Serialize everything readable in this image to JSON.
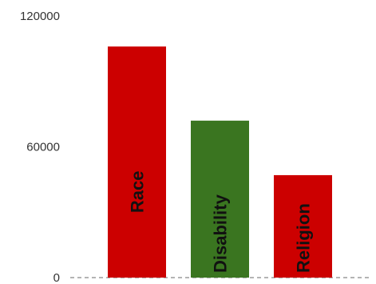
{
  "chart_data": {
    "type": "bar",
    "categories": [
      "Race",
      "Disability",
      "Religion"
    ],
    "values": [
      106000,
      72000,
      47000
    ],
    "colors": [
      "#cc0000",
      "#3a7520",
      "#cc0000"
    ],
    "ylim": [
      0,
      120000
    ],
    "yticks": [
      "0",
      "60000",
      "120000"
    ],
    "ytick_values": [
      0,
      60000,
      120000
    ],
    "baseline_style": "dashed",
    "bar_labels_inside": true
  }
}
